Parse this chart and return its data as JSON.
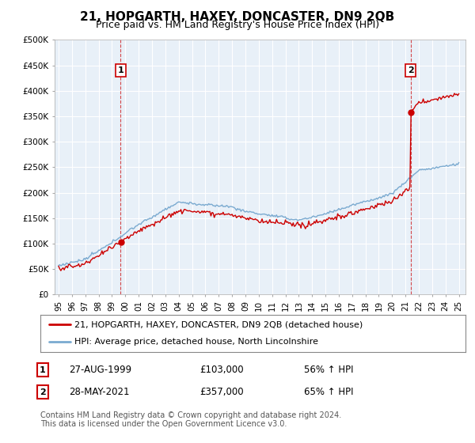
{
  "title": "21, HOPGARTH, HAXEY, DONCASTER, DN9 2QB",
  "subtitle": "Price paid vs. HM Land Registry's House Price Index (HPI)",
  "ylim": [
    0,
    500000
  ],
  "yticks": [
    0,
    50000,
    100000,
    150000,
    200000,
    250000,
    300000,
    350000,
    400000,
    450000,
    500000
  ],
  "ytick_labels": [
    "£0",
    "£50K",
    "£100K",
    "£150K",
    "£200K",
    "£250K",
    "£300K",
    "£350K",
    "£400K",
    "£450K",
    "£500K"
  ],
  "background_color": "#ffffff",
  "plot_bg_color": "#e8f0f8",
  "grid_color": "#ffffff",
  "sale1_year": 1999.65,
  "sale1_price": 103000,
  "sale2_year": 2021.38,
  "sale2_price": 357000,
  "annotation1": {
    "box_label": "1",
    "date": "27-AUG-1999",
    "price": "£103,000",
    "hpi": "56% ↑ HPI"
  },
  "annotation2": {
    "box_label": "2",
    "date": "28-MAY-2021",
    "price": "£357,000",
    "hpi": "65% ↑ HPI"
  },
  "legend_line1": "21, HOPGARTH, HAXEY, DONCASTER, DN9 2QB (detached house)",
  "legend_line2": "HPI: Average price, detached house, North Lincolnshire",
  "footer": "Contains HM Land Registry data © Crown copyright and database right 2024.\nThis data is licensed under the Open Government Licence v3.0.",
  "line_color_red": "#cc0000",
  "line_color_blue": "#7aaad0",
  "title_fontsize": 11,
  "subtitle_fontsize": 9,
  "tick_fontsize": 7.5,
  "legend_fontsize": 8,
  "footer_fontsize": 7,
  "xstart": 1995,
  "xend": 2025
}
